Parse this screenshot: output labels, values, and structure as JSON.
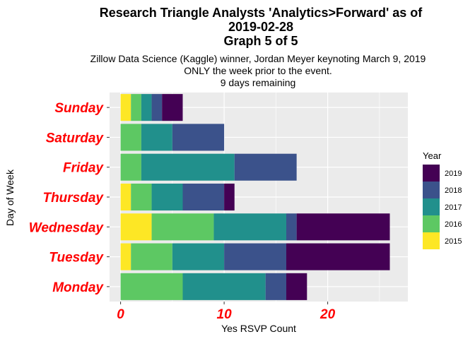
{
  "chart_data": {
    "type": "bar",
    "orientation": "horizontal",
    "stacked": true,
    "title": [
      "Research Triangle Analysts 'Analytics>Forward' as of",
      "2019-02-28",
      "Graph 5 of 5"
    ],
    "subtitle": [
      "Zillow Data Science (Kaggle) winner, Jordan Meyer keynoting March 9, 2019",
      "ONLY the week prior to the event.",
      "9 days remaining"
    ],
    "xlabel": "Yes RSVP Count",
    "ylabel": "Day of Week",
    "xlim": [
      0,
      26
    ],
    "xticks": [
      0,
      10,
      20
    ],
    "categories": [
      "Monday",
      "Tuesday",
      "Wednesday",
      "Thursday",
      "Friday",
      "Saturday",
      "Sunday"
    ],
    "series": [
      {
        "name": "2015",
        "color": "#FDE725",
        "values": [
          0,
          1,
          3,
          1,
          0,
          0,
          1
        ]
      },
      {
        "name": "2016",
        "color": "#5DC863",
        "values": [
          6,
          4,
          6,
          2,
          2,
          2,
          1
        ]
      },
      {
        "name": "2017",
        "color": "#21908C",
        "values": [
          8,
          5,
          7,
          3,
          9,
          3,
          1
        ]
      },
      {
        "name": "2018",
        "color": "#3B528B",
        "values": [
          2,
          6,
          1,
          4,
          6,
          5,
          1
        ]
      },
      {
        "name": "2019",
        "color": "#440154",
        "values": [
          2,
          10,
          9,
          1,
          0,
          0,
          2
        ]
      }
    ],
    "legend": {
      "title": "Year",
      "position": "right",
      "order": [
        "2019",
        "2018",
        "2017",
        "2016",
        "2015"
      ]
    },
    "grid": true,
    "panel_background": "#EBEBEB",
    "tick_label_color": "#FF0000"
  }
}
